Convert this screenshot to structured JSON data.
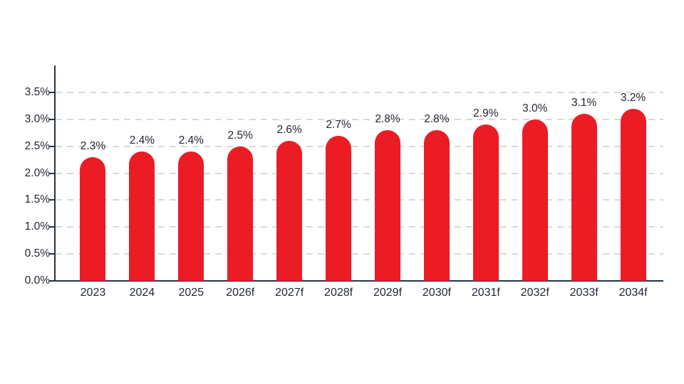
{
  "chart_data": {
    "type": "bar",
    "title": "",
    "xlabel": "",
    "ylabel": "",
    "categories": [
      "2023",
      "2024",
      "2025",
      "2026f",
      "2027f",
      "2028f",
      "2029f",
      "2030f",
      "2031f",
      "2032f",
      "2033f",
      "2034f"
    ],
    "values": [
      2.3,
      2.4,
      2.4,
      2.5,
      2.6,
      2.7,
      2.8,
      2.8,
      2.9,
      3.0,
      3.1,
      3.2
    ],
    "value_labels": [
      "2.3%",
      "2.4%",
      "2.4%",
      "2.5%",
      "2.6%",
      "2.7%",
      "2.8%",
      "2.8%",
      "2.9%",
      "3.0%",
      "3.1%",
      "3.2%"
    ],
    "y_ticks": [
      "0.0%",
      "0.5%",
      "1.0%",
      "1.5%",
      "2.0%",
      "2.5%",
      "3.0%",
      "3.5%"
    ],
    "ylim": [
      0,
      4.0
    ],
    "grid": "horizontal-dashed",
    "legend": "none",
    "colors": {
      "bar": "#EC1C24",
      "axis": "#233544",
      "text": "#1F2430",
      "gridline": "#D9D9D9",
      "background": "#FFFFFF"
    }
  }
}
